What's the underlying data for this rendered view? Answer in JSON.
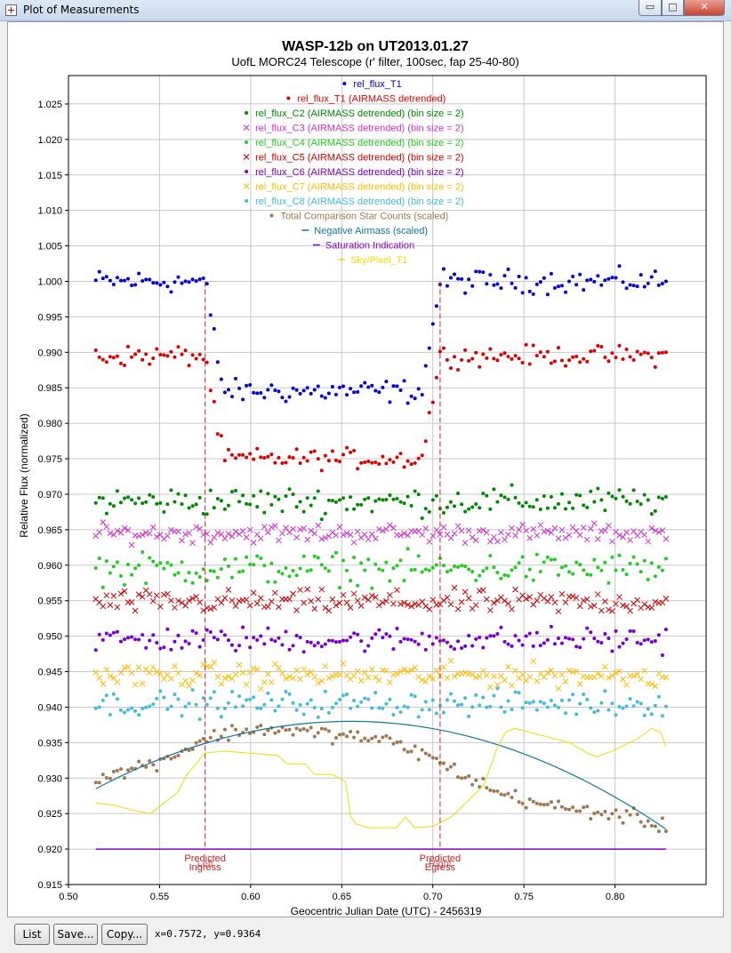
{
  "window": {
    "title": "Plot of Measurements",
    "minimize_glyph": "▭",
    "maximize_glyph": "□",
    "close_glyph": "✕",
    "icon": "plot-window-icon"
  },
  "buttons": {
    "list": "List",
    "save": "Save...",
    "copy": "Copy..."
  },
  "cursor_readout": "x=0.7572, y=0.9364",
  "chart_data": {
    "type": "scatter",
    "title": "WASP-12b on UT2013.01.27",
    "subtitle": "UofL MORC24 Telescope (r' filter, 100sec, fap 25-40-80)",
    "xlabel": "Geocentric Julian Date (UTC) - 2456319",
    "ylabel": "Relative Flux (normalized)",
    "xlim": [
      0.5,
      0.85
    ],
    "ylim": [
      0.915,
      1.029
    ],
    "grid": true,
    "legend_position": "top-center",
    "x_ticks": [
      0.5,
      0.55,
      0.6,
      0.65,
      0.7,
      0.75,
      0.8
    ],
    "x_tick_labels": [
      "0.50",
      "0.55",
      "0.60",
      "0.65",
      "0.70",
      "0.75",
      "0.80"
    ],
    "y_ticks": [
      0.915,
      0.92,
      0.925,
      0.93,
      0.935,
      0.94,
      0.945,
      0.95,
      0.955,
      0.96,
      0.965,
      0.97,
      0.975,
      0.98,
      0.985,
      0.99,
      0.995,
      1.0,
      1.005,
      1.01,
      1.015,
      1.02,
      1.025
    ],
    "y_tick_labels": [
      "0.915",
      "0.920",
      "0.925",
      "0.930",
      "0.935",
      "0.940",
      "0.945",
      "0.950",
      "0.955",
      "0.960",
      "0.965",
      "0.970",
      "0.975",
      "0.980",
      "0.985",
      "0.990",
      "0.995",
      "1.000",
      "1.005",
      "1.010",
      "1.015",
      "1.020",
      "1.025"
    ],
    "series": [
      {
        "name": "rel_flux_T1",
        "marker": "dot",
        "color": "#0000cc",
        "model": "transit",
        "base": 1.0,
        "depth": 0.0155,
        "scatter": 0.0014
      },
      {
        "name": "rel_flux_T1 (AIRMASS detrended)",
        "marker": "dot",
        "color": "#dd0000",
        "model": "transit",
        "base": 0.9895,
        "depth": 0.0145,
        "scatter": 0.0012
      },
      {
        "name": "rel_flux_C2 (AIRMASS detrended) (bin size = 2)",
        "marker": "dot",
        "color": "#008800",
        "model": "flat",
        "base": 0.969,
        "scatter": 0.0017
      },
      {
        "name": "rel_flux_C3 (AIRMASS detrended) (bin size = 2)",
        "marker": "x",
        "color": "#cc33cc",
        "model": "flat",
        "base": 0.9645,
        "scatter": 0.0011
      },
      {
        "name": "rel_flux_C4 (AIRMASS detrended) (bin size = 2)",
        "marker": "dot",
        "color": "#22cc22",
        "model": "flat",
        "base": 0.9595,
        "scatter": 0.0019
      },
      {
        "name": "rel_flux_C5 (AIRMASS detrended) (bin size = 2)",
        "marker": "x",
        "color": "#cc0000",
        "model": "flat",
        "base": 0.9548,
        "scatter": 0.0014
      },
      {
        "name": "rel_flux_C6 (AIRMASS detrended) (bin size = 2)",
        "marker": "dot",
        "color": "#7700cc",
        "model": "flat",
        "base": 0.9495,
        "scatter": 0.0015
      },
      {
        "name": "rel_flux_C7 (AIRMASS detrended) (bin size = 2)",
        "marker": "x",
        "color": "#ffbb00",
        "model": "flat",
        "base": 0.9445,
        "scatter": 0.0014
      },
      {
        "name": "rel_flux_C8 (AIRMASS detrended) (bin size = 2)",
        "marker": "dot",
        "color": "#44bbdd",
        "model": "flat",
        "base": 0.9405,
        "scatter": 0.0015
      },
      {
        "name": "Total Comparison Star Counts (scaled)",
        "marker": "dot",
        "color": "#a07850",
        "model": "counts",
        "points": [
          [
            0.515,
            0.9295
          ],
          [
            0.53,
            0.931
          ],
          [
            0.545,
            0.932
          ],
          [
            0.56,
            0.9335
          ],
          [
            0.575,
            0.9355
          ],
          [
            0.59,
            0.9365
          ],
          [
            0.61,
            0.937
          ],
          [
            0.63,
            0.9365
          ],
          [
            0.65,
            0.936
          ],
          [
            0.67,
            0.9355
          ],
          [
            0.69,
            0.934
          ],
          [
            0.705,
            0.932
          ],
          [
            0.72,
            0.93
          ],
          [
            0.735,
            0.928
          ],
          [
            0.75,
            0.927
          ],
          [
            0.765,
            0.926
          ],
          [
            0.78,
            0.9255
          ],
          [
            0.795,
            0.925
          ],
          [
            0.81,
            0.9245
          ],
          [
            0.828,
            0.923
          ]
        ],
        "scatter": 0.0009
      },
      {
        "name": "Negative Airmass (scaled)",
        "marker": "line",
        "color": "#117799",
        "model": "airmass",
        "x0": 0.515,
        "x1": 0.828,
        "peak_x": 0.655,
        "peak_y": 0.938,
        "start_y": 0.9285,
        "end_y": 0.9228
      },
      {
        "name": "Saturation Indication",
        "marker": "line",
        "color": "#8800cc",
        "model": "hline",
        "y": 0.92
      },
      {
        "name": "Sky/Pixel_T1",
        "marker": "line",
        "color": "#eedd00",
        "model": "polyline",
        "points": [
          [
            0.515,
            0.9265
          ],
          [
            0.525,
            0.9262
          ],
          [
            0.535,
            0.9255
          ],
          [
            0.545,
            0.925
          ],
          [
            0.55,
            0.926
          ],
          [
            0.56,
            0.928
          ],
          [
            0.565,
            0.9305
          ],
          [
            0.57,
            0.932
          ],
          [
            0.575,
            0.9335
          ],
          [
            0.585,
            0.9338
          ],
          [
            0.6,
            0.9335
          ],
          [
            0.615,
            0.9332
          ],
          [
            0.62,
            0.932
          ],
          [
            0.63,
            0.932
          ],
          [
            0.635,
            0.9305
          ],
          [
            0.645,
            0.9305
          ],
          [
            0.652,
            0.9295
          ],
          [
            0.655,
            0.9245
          ],
          [
            0.658,
            0.9235
          ],
          [
            0.665,
            0.923
          ],
          [
            0.68,
            0.923
          ],
          [
            0.685,
            0.9245
          ],
          [
            0.69,
            0.923
          ],
          [
            0.7,
            0.9232
          ],
          [
            0.71,
            0.9245
          ],
          [
            0.72,
            0.927
          ],
          [
            0.728,
            0.929
          ],
          [
            0.735,
            0.934
          ],
          [
            0.74,
            0.9365
          ],
          [
            0.745,
            0.937
          ],
          [
            0.76,
            0.936
          ],
          [
            0.775,
            0.935
          ],
          [
            0.785,
            0.9335
          ],
          [
            0.79,
            0.933
          ],
          [
            0.8,
            0.934
          ],
          [
            0.812,
            0.9355
          ],
          [
            0.82,
            0.937
          ],
          [
            0.825,
            0.9365
          ],
          [
            0.828,
            0.9345
          ]
        ]
      }
    ],
    "transit": {
      "ingress": 0.575,
      "egress": 0.704,
      "dur": 0.01
    },
    "n_points": 160,
    "annotations": [
      {
        "x": 0.575,
        "lines": [
          "Predicted",
          "Left",
          "Ingress"
        ],
        "color": "#cc2222"
      },
      {
        "x": 0.704,
        "lines": [
          "Predicted",
          "Right",
          "Egress"
        ],
        "color": "#cc2222"
      }
    ]
  }
}
